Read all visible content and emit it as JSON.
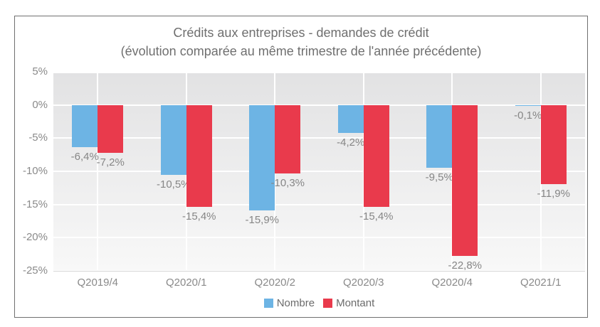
{
  "chart_data": {
    "type": "bar",
    "title": "Crédits aux entreprises - demandes de crédit",
    "subtitle": "(évolution comparée au même trimestre de l'année précédente)",
    "categories": [
      "Q2019/4",
      "Q2020/1",
      "Q2020/2",
      "Q2020/3",
      "Q2020/4",
      "Q2021/1"
    ],
    "series": [
      {
        "name": "Nombre",
        "color": "#6db4e4",
        "values": [
          -6.4,
          -10.5,
          -15.9,
          -4.2,
          -9.5,
          -0.1
        ],
        "labels": [
          "-6,4%",
          "-10,5%",
          "-15,9%",
          "-4,2%",
          "-9,5%",
          "-0,1%"
        ]
      },
      {
        "name": "Montant",
        "color": "#e93a4c",
        "values": [
          -7.2,
          -15.4,
          -10.3,
          -15.4,
          -22.8,
          -11.9
        ],
        "labels": [
          "-7,2%",
          "-15,4%",
          "-10,3%",
          "-15,4%",
          "-22,8%",
          "-11,9%"
        ]
      }
    ],
    "y_axis": {
      "min": -25,
      "max": 5,
      "step": 5,
      "tick_labels": [
        "5%",
        "0%",
        "-5%",
        "-10%",
        "-15%",
        "-20%",
        "-25%"
      ],
      "unit": "%"
    },
    "grid": "on",
    "legend_position": "bottom-center",
    "plot_background": {
      "top": "#e2e2e3",
      "bottom": "#f8f8f8",
      "gridline": "#ffffff"
    }
  }
}
